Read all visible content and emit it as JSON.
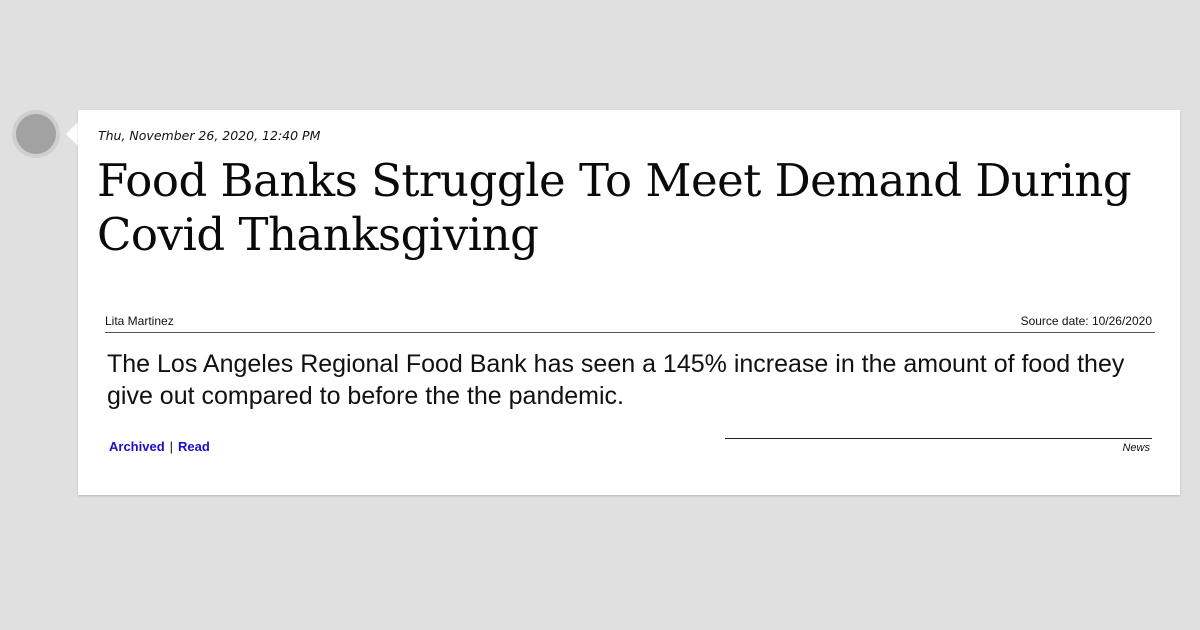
{
  "post": {
    "timestamp": "Thu, November 26, 2020, 12:40 PM",
    "headline": "Food Banks Struggle To Meet Demand During Covid Thanksgiving",
    "author": "Lita Martinez",
    "source_date": "Source date: 10/26/2020",
    "body": "The Los Angeles Regional Food Bank has seen a 145% increase in the amount of food they give out compared to before the the pandemic.",
    "links": {
      "archived": "Archived",
      "separator": "|",
      "read": "Read"
    },
    "category": "News"
  },
  "colors": {
    "background": "#e0e0e0",
    "card": "#ffffff",
    "link": "#1a0dcc"
  }
}
